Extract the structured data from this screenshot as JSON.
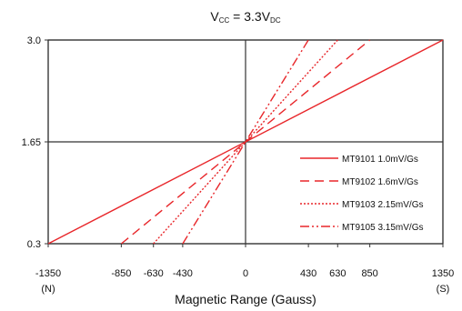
{
  "chart_data": {
    "type": "line",
    "title": {
      "main": "V",
      "sub1": "CC",
      "mid": " = 3.3V",
      "sub2": "DC"
    },
    "xlabel": "Magnetic Range (Gauss)",
    "ylabel": "",
    "xlim": [
      -1350,
      1350
    ],
    "ylim": [
      0.3,
      3.0
    ],
    "grid": true,
    "legend_position": "right-center",
    "x_ticks": [
      "-1350",
      "-850",
      "-630",
      "-430",
      "0",
      "430",
      "630",
      "850",
      "1350"
    ],
    "x_tick_values": [
      -1350,
      -850,
      -630,
      -430,
      0,
      430,
      630,
      850,
      1350
    ],
    "x_sublabels": [
      {
        "at": -1350,
        "text": "(N)"
      },
      {
        "at": 1350,
        "text": "(S)"
      }
    ],
    "y_ticks": [
      "0.3",
      "1.65",
      "3.0"
    ],
    "y_tick_values": [
      0.3,
      1.65,
      3.0
    ],
    "gridlines_x": [
      -1350,
      0,
      1350
    ],
    "gridlines_y": [
      0.3,
      1.65,
      3.0
    ],
    "series": [
      {
        "name": "MT9101 1.0mV/Gs",
        "style": "solid",
        "x": [
          -1350,
          1350
        ],
        "y": [
          0.3,
          3.0
        ]
      },
      {
        "name": "MT9102 1.6mV/Gs",
        "style": "dashed",
        "x": [
          -850,
          850
        ],
        "y": [
          0.3,
          3.0
        ]
      },
      {
        "name": "MT9103 2.15mV/Gs",
        "style": "dotted",
        "x": [
          -630,
          630
        ],
        "y": [
          0.3,
          3.0
        ]
      },
      {
        "name": "MT9105 3.15mV/Gs",
        "style": "dashdot",
        "x": [
          -430,
          430
        ],
        "y": [
          0.3,
          3.0
        ]
      }
    ],
    "line_color": "#e8262a"
  }
}
